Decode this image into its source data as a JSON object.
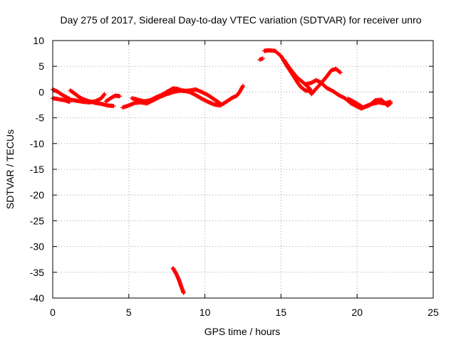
{
  "chart_data": {
    "type": "scatter",
    "title": "Day 275 of 2017, Sidereal Day-to-day VTEC variation (SDTVAR) for receiver unro",
    "xlabel": "GPS time / hours",
    "ylabel": "SDTVAR / TECUs",
    "xlim": [
      0,
      25
    ],
    "ylim": [
      -40,
      10
    ],
    "xticks": [
      0,
      5,
      10,
      15,
      20,
      25
    ],
    "yticks": [
      10,
      5,
      0,
      -5,
      -10,
      -15,
      -20,
      -25,
      -30,
      -35,
      -40
    ],
    "grid": true,
    "marker": "+",
    "series": [
      {
        "name": "SDTVAR",
        "color": "#ff0000",
        "segments": [
          [
            [
              0.0,
              0.5
            ],
            [
              0.3,
              0.1
            ],
            [
              0.6,
              -0.5
            ],
            [
              0.9,
              -1.0
            ],
            [
              1.1,
              -1.3
            ]
          ],
          [
            [
              0.0,
              -1.2
            ],
            [
              0.4,
              -1.4
            ],
            [
              0.8,
              -1.6
            ],
            [
              1.1,
              -1.9
            ]
          ],
          [
            [
              1.15,
              0.3
            ],
            [
              1.4,
              -0.2
            ],
            [
              1.7,
              -0.9
            ],
            [
              2.0,
              -1.4
            ],
            [
              2.4,
              -1.8
            ],
            [
              2.8,
              -2.1
            ],
            [
              3.2,
              -2.3
            ],
            [
              3.6,
              -2.6
            ],
            [
              4.0,
              -2.7
            ]
          ],
          [
            [
              1.2,
              -1.5
            ],
            [
              1.6,
              -1.7
            ],
            [
              2.0,
              -1.9
            ],
            [
              2.4,
              -2.0
            ],
            [
              2.8,
              -1.8
            ],
            [
              3.2,
              -1.2
            ],
            [
              3.4,
              -0.4
            ]
          ],
          [
            [
              3.5,
              -1.8
            ],
            [
              3.8,
              -1.2
            ],
            [
              4.1,
              -0.7
            ],
            [
              4.4,
              -0.8
            ]
          ],
          [
            [
              4.6,
              -3.0
            ],
            [
              5.0,
              -2.6
            ],
            [
              5.4,
              -2.1
            ],
            [
              5.8,
              -2.0
            ],
            [
              6.2,
              -2.2
            ],
            [
              6.6,
              -1.6
            ],
            [
              7.0,
              -1.0
            ],
            [
              7.4,
              -0.5
            ],
            [
              7.8,
              -0.1
            ],
            [
              8.2,
              0.2
            ],
            [
              8.6,
              0.3
            ],
            [
              9.0,
              0.0
            ],
            [
              9.4,
              -0.6
            ],
            [
              9.8,
              -1.3
            ],
            [
              10.2,
              -1.9
            ],
            [
              10.6,
              -2.4
            ],
            [
              11.0,
              -2.6
            ],
            [
              11.4,
              -1.9
            ],
            [
              11.8,
              -1.1
            ],
            [
              12.1,
              -0.7
            ],
            [
              12.3,
              0.1
            ],
            [
              12.5,
              1.2
            ]
          ],
          [
            [
              5.2,
              -1.2
            ],
            [
              5.6,
              -1.5
            ],
            [
              6.0,
              -1.8
            ],
            [
              6.4,
              -1.6
            ],
            [
              6.8,
              -1.0
            ],
            [
              7.2,
              -0.5
            ],
            [
              7.6,
              0.2
            ],
            [
              7.9,
              0.7
            ],
            [
              8.2,
              0.6
            ],
            [
              8.6,
              0.2
            ],
            [
              9.0,
              0.3
            ],
            [
              9.4,
              0.5
            ],
            [
              9.8,
              0.0
            ],
            [
              10.2,
              -0.6
            ],
            [
              10.6,
              -1.4
            ],
            [
              11.0,
              -2.2
            ]
          ],
          [
            [
              7.9,
              -34.2
            ],
            [
              8.1,
              -35.2
            ],
            [
              8.3,
              -36.5
            ],
            [
              8.45,
              -37.8
            ],
            [
              8.6,
              -39.0
            ]
          ],
          [
            [
              13.6,
              6.3
            ],
            [
              13.8,
              6.5
            ]
          ],
          [
            [
              13.9,
              8.0
            ],
            [
              14.2,
              8.1
            ],
            [
              14.6,
              8.0
            ],
            [
              15.0,
              7.0
            ],
            [
              15.4,
              5.0
            ],
            [
              15.8,
              3.2
            ],
            [
              16.1,
              1.8
            ],
            [
              16.3,
              1.0
            ],
            [
              16.6,
              0.3
            ],
            [
              16.9,
              0.2
            ]
          ],
          [
            [
              15.2,
              6.2
            ],
            [
              15.6,
              4.5
            ],
            [
              16.0,
              3.0
            ],
            [
              16.4,
              2.0
            ],
            [
              16.7,
              1.2
            ],
            [
              16.9,
              0.6
            ],
            [
              17.0,
              -0.4
            ],
            [
              17.2,
              0.3
            ],
            [
              17.6,
              1.6
            ],
            [
              18.0,
              3.0
            ],
            [
              18.3,
              4.2
            ],
            [
              18.6,
              4.5
            ],
            [
              18.9,
              3.8
            ]
          ],
          [
            [
              16.6,
              1.5
            ],
            [
              17.0,
              1.8
            ],
            [
              17.3,
              2.3
            ],
            [
              17.6,
              1.9
            ],
            [
              18.0,
              0.8
            ],
            [
              18.4,
              0.2
            ],
            [
              18.8,
              -0.6
            ],
            [
              19.2,
              -1.2
            ],
            [
              19.6,
              -2.2
            ],
            [
              20.0,
              -2.8
            ],
            [
              20.3,
              -3.2
            ],
            [
              20.6,
              -2.7
            ],
            [
              21.0,
              -2.3
            ],
            [
              21.4,
              -2.0
            ],
            [
              21.8,
              -2.2
            ],
            [
              22.2,
              -1.9
            ]
          ],
          [
            [
              19.4,
              -1.3
            ],
            [
              19.8,
              -1.9
            ],
            [
              20.4,
              -3.0
            ],
            [
              20.8,
              -2.6
            ],
            [
              21.2,
              -1.6
            ],
            [
              21.6,
              -1.5
            ],
            [
              22.0,
              -2.6
            ],
            [
              22.2,
              -2.2
            ]
          ]
        ]
      }
    ]
  }
}
